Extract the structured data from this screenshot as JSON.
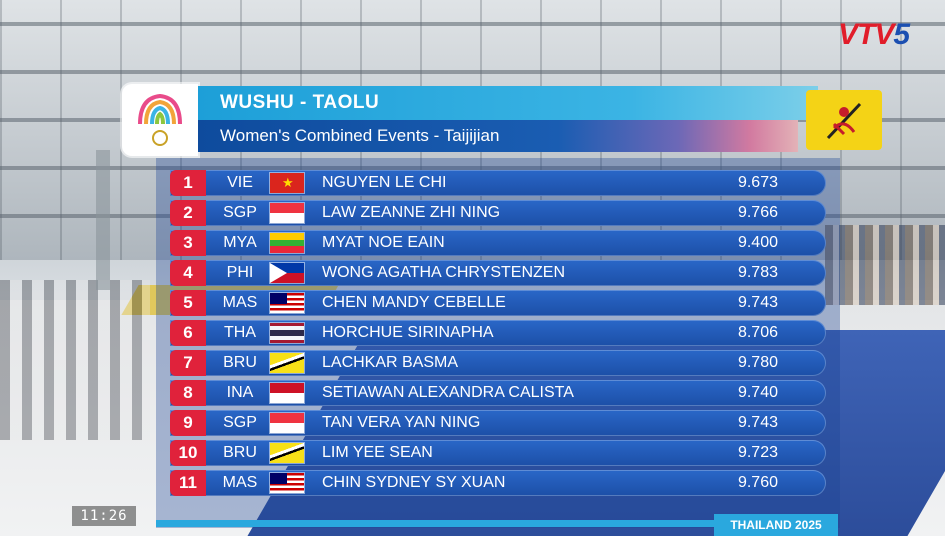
{
  "channel": {
    "logo_prefix": "VTV",
    "logo_number": "5"
  },
  "header": {
    "sport": "WUSHU - TAOLU",
    "event": "Women's Combined Events - Taijijian"
  },
  "results": [
    {
      "rank": "1",
      "noc": "VIE",
      "flag": "vietnam",
      "athlete": "NGUYEN LE CHI",
      "score": "9.673"
    },
    {
      "rank": "2",
      "noc": "SGP",
      "flag": "singapore",
      "athlete": "LAW ZEANNE ZHI NING",
      "score": "9.766"
    },
    {
      "rank": "3",
      "noc": "MYA",
      "flag": "myanmar",
      "athlete": "MYAT NOE EAIN",
      "score": "9.400"
    },
    {
      "rank": "4",
      "noc": "PHI",
      "flag": "philippines",
      "athlete": "WONG AGATHA CHRYSTENZEN",
      "score": "9.783"
    },
    {
      "rank": "5",
      "noc": "MAS",
      "flag": "malaysia",
      "athlete": "CHEN MANDY CEBELLE",
      "score": "9.743"
    },
    {
      "rank": "6",
      "noc": "THA",
      "flag": "thailand",
      "athlete": "HORCHUE SIRINAPHA",
      "score": "8.706"
    },
    {
      "rank": "7",
      "noc": "BRU",
      "flag": "brunei",
      "athlete": "LACHKAR BASMA",
      "score": "9.780"
    },
    {
      "rank": "8",
      "noc": "INA",
      "flag": "indonesia",
      "athlete": "SETIAWAN ALEXANDRA CALISTA",
      "score": "9.740"
    },
    {
      "rank": "9",
      "noc": "SGP",
      "flag": "singapore",
      "athlete": "TAN VERA YAN NING",
      "score": "9.743"
    },
    {
      "rank": "10",
      "noc": "BRU",
      "flag": "brunei",
      "athlete": "LIM YEE SEAN",
      "score": "9.723"
    },
    {
      "rank": "11",
      "noc": "MAS",
      "flag": "malaysia",
      "athlete": "CHIN SYDNEY SY XUAN",
      "score": "9.760"
    }
  ],
  "footer": {
    "games": "THAILAND 2025"
  },
  "clock": "11:26",
  "colors": {
    "rank_badge": "#e0223b",
    "row_blue": "#1c4fa7",
    "header_cyan": "#1d9fd8",
    "discipline_yellow": "#f4d316"
  },
  "icons": {
    "event_logo": "sea-games-logo-icon",
    "discipline": "wushu-sword-icon"
  }
}
